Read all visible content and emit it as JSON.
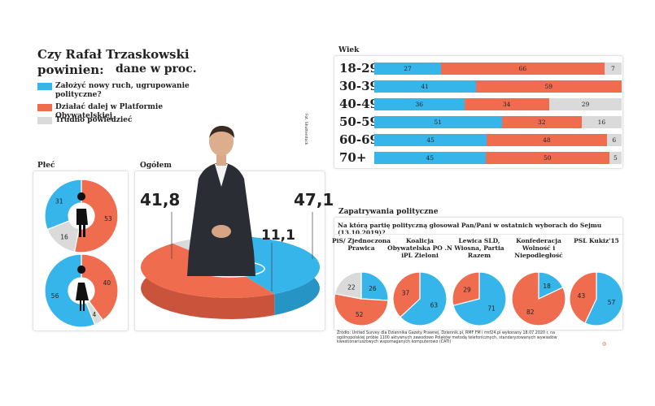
{
  "header": {
    "title": "Czy Rafał Trzaskowski powinien:",
    "unit": "dane w proc."
  },
  "colors": {
    "blue": "#35b5ea",
    "orange": "#ef6c4f",
    "gray": "#dadada"
  },
  "legend": [
    {
      "label": "Założyć nowy ruch, ugrupowanie polityczne?",
      "color": "#35b5ea"
    },
    {
      "label": "Działać dalej w Platformie Obywatelskiej",
      "color": "#ef6c4f"
    },
    {
      "label": "Trudno powiedzieć",
      "color": "#dadada"
    }
  ],
  "sections": {
    "gender": "Płeć",
    "overall": "Ogółem",
    "age": "Wiek",
    "political": "Zapatrywania polityczne",
    "question": "Na którą partię polityczną głosował Pan/Pani w ostatnich wyborach do Sejmu (13.10.2019)?"
  },
  "photo_credit": "Fot. Shutterstock",
  "source": "Źródło: United Survey dla Dziennika Gazety Prawnej, Dziennik.pl, RMF FM i rmf24.pl wykonany 18.07.2020 r. na ogólnopolskiej próbie 1100 aktywnych zawodowo Polaków metodą telefonicznych, standaryzowanych wywiadów kwestionariuszowych wspomaganych komputerowo (CATI)",
  "chart_data": [
    {
      "type": "pie",
      "title": "Ogółem",
      "labels": [
        "Założyć nowy ruch",
        "Działać dalej w PO",
        "Trudno powiedzieć"
      ],
      "values": [
        41.8,
        47.1,
        11.1
      ],
      "value_labels": [
        "41,8",
        "47,1",
        "11,1"
      ]
    },
    {
      "type": "pie",
      "title": "Płeć",
      "series": [
        {
          "name": "Mężczyźni",
          "values": [
            31,
            53,
            16
          ]
        },
        {
          "name": "Kobiety",
          "values": [
            56,
            40,
            4
          ]
        }
      ]
    },
    {
      "type": "bar",
      "title": "Wiek",
      "stacked": true,
      "orientation": "horizontal",
      "categories": [
        "18-29",
        "30-39",
        "40-49",
        "50-59",
        "60-69",
        "70+"
      ],
      "series": [
        {
          "name": "Założyć nowy ruch",
          "values": [
            27,
            41,
            36,
            51,
            45,
            45
          ]
        },
        {
          "name": "Działać dalej w PO",
          "values": [
            66,
            59,
            34,
            32,
            48,
            50
          ]
        },
        {
          "name": "Trudno powiedzieć",
          "values": [
            7,
            null,
            29,
            16,
            6,
            5
          ]
        }
      ]
    },
    {
      "type": "pie",
      "title": "Zapatrywania polityczne",
      "parties": [
        {
          "name": "PiS/ Zjednoczona Prawica",
          "values": [
            26,
            52,
            22
          ]
        },
        {
          "name": "Koalicja Obywatelska PO .N iPL Zieloni",
          "values": [
            63,
            37,
            null
          ]
        },
        {
          "name": "Lewica SLD, Wiosna, Partia Razem",
          "values": [
            71,
            29,
            null
          ]
        },
        {
          "name": "Konfederacja Wolność i Niepodległość",
          "values": [
            18,
            82,
            null
          ]
        },
        {
          "name": "PSL Kukiz'15",
          "values": [
            57,
            43,
            null
          ]
        }
      ]
    }
  ]
}
